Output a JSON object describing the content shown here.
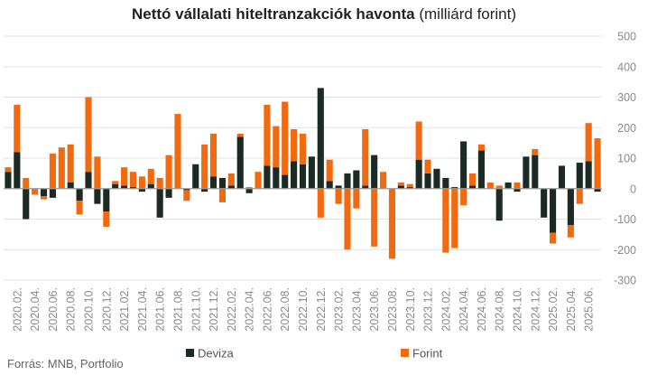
{
  "title_bold": "Nettó vállalati hiteltranzakciók havonta",
  "title_rest": " (milliárd forint)",
  "source": "Forrás: MNB, Portfolio",
  "colors": {
    "deviza": "#1b2a23",
    "forint": "#f26a10",
    "grid": "#e3e3e3",
    "zero": "#9a9a9a"
  },
  "chart_data": {
    "type": "bar",
    "stacked": true,
    "title": "Nettó vállalati hiteltranzakciók havonta (milliárd forint)",
    "ylim": [
      -300,
      500
    ],
    "yticks": [
      -300,
      -200,
      -100,
      0,
      100,
      200,
      300,
      400,
      500
    ],
    "y_axis_position": "right",
    "legend_placement": "bottom-center",
    "grid": true,
    "x_tick_labels": [
      "2020.02.",
      "2020.04.",
      "2020.06.",
      "2020.08.",
      "2020.10.",
      "2020.12.",
      "2021.02.",
      "2021.04.",
      "2021.06.",
      "2021.08.",
      "2021.10.",
      "2021.12.",
      "2022.02.",
      "2022.04.",
      "2022.06.",
      "2022.08.",
      "2022.10.",
      "2022.12.",
      "2023.02.",
      "2023.04.",
      "2023.06.",
      "2023.08.",
      "2023.10.",
      "2023.12.",
      "2024.02.",
      "2024.04.",
      "2024.06.",
      "2024.08.",
      "2024.10.",
      "2024.12.",
      "2025.02.",
      "2025.04.",
      "2025.06."
    ],
    "categories": [
      "2020.01.",
      "2020.02.",
      "2020.03.",
      "2020.04.",
      "2020.05.",
      "2020.06.",
      "2020.07.",
      "2020.08.",
      "2020.09.",
      "2020.10.",
      "2020.11.",
      "2020.12.",
      "2021.01.",
      "2021.02.",
      "2021.03.",
      "2021.04.",
      "2021.05.",
      "2021.06.",
      "2021.07.",
      "2021.08.",
      "2021.09.",
      "2021.10.",
      "2021.11.",
      "2021.12.",
      "2022.01.",
      "2022.02.",
      "2022.03.",
      "2022.04.",
      "2022.05.",
      "2022.06.",
      "2022.07.",
      "2022.08.",
      "2022.09.",
      "2022.10.",
      "2022.11.",
      "2022.12.",
      "2023.01.",
      "2023.02.",
      "2023.03.",
      "2023.04.",
      "2023.05.",
      "2023.06.",
      "2023.07.",
      "2023.08.",
      "2023.09.",
      "2023.10.",
      "2023.11.",
      "2023.12.",
      "2024.01.",
      "2024.02.",
      "2024.03.",
      "2024.04.",
      "2024.05.",
      "2024.06.",
      "2024.07.",
      "2024.08.",
      "2024.09.",
      "2024.10.",
      "2024.11.",
      "2024.12.",
      "2025.01.",
      "2025.02.",
      "2025.03.",
      "2025.04.",
      "2025.05.",
      "2025.06.",
      "2025.07."
    ],
    "series": [
      {
        "name": "Deviza",
        "values": [
          55,
          120,
          -100,
          0,
          -25,
          -30,
          0,
          20,
          -40,
          55,
          -50,
          -75,
          15,
          10,
          5,
          -10,
          15,
          -95,
          -30,
          0,
          -5,
          80,
          -10,
          40,
          35,
          10,
          170,
          -15,
          0,
          75,
          70,
          45,
          90,
          80,
          105,
          330,
          25,
          10,
          50,
          60,
          10,
          110,
          0,
          0,
          10,
          5,
          95,
          50,
          65,
          35,
          5,
          155,
          10,
          125,
          0,
          -105,
          20,
          -10,
          105,
          110,
          -95,
          -145,
          75,
          -120,
          85,
          90,
          -10
        ]
      },
      {
        "name": "Forint",
        "values": [
          15,
          155,
          35,
          -20,
          -10,
          115,
          135,
          125,
          -45,
          245,
          105,
          -50,
          10,
          60,
          50,
          40,
          50,
          35,
          110,
          245,
          -35,
          0,
          145,
          140,
          -45,
          40,
          10,
          5,
          55,
          200,
          135,
          240,
          105,
          100,
          0,
          -95,
          70,
          -50,
          -200,
          -65,
          185,
          -190,
          55,
          -230,
          10,
          10,
          125,
          45,
          0,
          -210,
          -195,
          -55,
          40,
          20,
          20,
          10,
          0,
          20,
          0,
          20,
          0,
          -35,
          0,
          -40,
          -50,
          125,
          165
        ]
      }
    ]
  },
  "legend": [
    {
      "label": "Deviza",
      "color": "#1b2a23"
    },
    {
      "label": "Forint",
      "color": "#f26a10"
    }
  ]
}
